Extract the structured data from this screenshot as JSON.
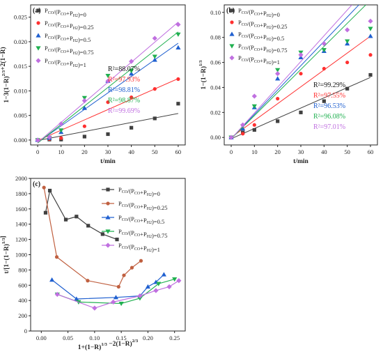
{
  "legend_prefix": "P",
  "legend_labels": [
    "P_CO/(P_CO+P_H2)=0",
    "P_CO/(P_CO+P_H2)=0.25",
    "P_CO/(P_CO+P_H2)=0.5",
    "P_CO/(P_CO+P_H2)=0.75",
    "P_CO/(P_CO+P_H2)=1"
  ],
  "chart_data": [
    {
      "type": "scatter",
      "panel_label": "(a)",
      "xlabel": "t/min",
      "ylabel": "1−3(1−R)^2/3+2(1−R)",
      "xlim": [
        -3,
        63
      ],
      "ylim": [
        -0.001,
        0.0275
      ],
      "xticks": [
        "0",
        "10",
        "20",
        "30",
        "40",
        "50",
        "60"
      ],
      "yticks": [
        "0.000",
        "0.005",
        "0.010",
        "0.015",
        "0.020",
        "0.025"
      ],
      "legend_position": "top-left",
      "r2": [
        "R²=88.07%",
        "R²=97.93%",
        "R²=98.81%",
        "R²=98.87%",
        "R²=99.69%"
      ],
      "series": [
        {
          "name": "P_CO/(P_CO+P_H2)=0",
          "color": "#404040",
          "marker": "square",
          "x": [
            0,
            5,
            10,
            20,
            30,
            40,
            50,
            60
          ],
          "y": [
            0.0,
            0.0001,
            0.0001,
            0.0007,
            0.0012,
            0.0025,
            0.0044,
            0.0074
          ],
          "fit": [
            [
              0,
              -0.0001
            ],
            [
              60,
              0.0054
            ]
          ]
        },
        {
          "name": "P_CO/(P_CO+P_H2)=0.25",
          "color": "#ff3030",
          "marker": "circle",
          "x": [
            0,
            5,
            10,
            20,
            30,
            40,
            50,
            60
          ],
          "y": [
            0.0,
            0.0002,
            0.0004,
            0.0028,
            0.0077,
            0.0087,
            0.0104,
            0.0124
          ],
          "fit": [
            [
              0,
              -0.0001
            ],
            [
              60,
              0.0125
            ]
          ]
        },
        {
          "name": "P_CO/(P_CO+P_H2)=0.5",
          "color": "#2060d0",
          "marker": "triangle",
          "x": [
            0,
            5,
            10,
            20,
            30,
            40,
            50,
            60
          ],
          "y": [
            0.0,
            0.0004,
            0.0016,
            0.0065,
            0.012,
            0.0135,
            0.0163,
            0.0188
          ],
          "fit": [
            [
              0,
              -0.0005
            ],
            [
              60,
              0.0197
            ]
          ]
        },
        {
          "name": "P_CO/(P_CO+P_H2)=0.75",
          "color": "#20b050",
          "marker": "triangle-down",
          "x": [
            0,
            5,
            10,
            20,
            30,
            40,
            50,
            60
          ],
          "y": [
            0.0,
            0.0005,
            0.002,
            0.0086,
            0.0131,
            0.0141,
            0.017,
            0.0215
          ],
          "fit": [
            [
              0,
              -0.0006
            ],
            [
              60,
              0.022
            ]
          ]
        },
        {
          "name": "P_CO/(P_CO+P_H2)=1",
          "color": "#c070e0",
          "marker": "diamond",
          "x": [
            0,
            5,
            10,
            20,
            30,
            40,
            50,
            60
          ],
          "y": [
            0.0,
            0.0006,
            0.0033,
            0.008,
            0.012,
            0.016,
            0.0207,
            0.0235
          ],
          "fit": [
            [
              0,
              -0.0005
            ],
            [
              60,
              0.024
            ]
          ]
        }
      ]
    },
    {
      "type": "scatter",
      "panel_label": "(b)",
      "xlabel": "t/min",
      "ylabel": "1−(1−R)^1/3",
      "xlim": [
        -3,
        63
      ],
      "ylim": [
        -0.006,
        0.106
      ],
      "xticks": [
        "0",
        "10",
        "20",
        "30",
        "40",
        "50",
        "60"
      ],
      "yticks": [
        "0.00",
        "0.02",
        "0.04",
        "0.06",
        "0.08",
        "0.10"
      ],
      "legend_position": "top-left",
      "r2": [
        "R²=99.29%",
        "R²=97.55%",
        "R²=96.53%",
        "R²=96.08%",
        "R²=97.01%"
      ],
      "series": [
        {
          "name": "P_CO/(P_CO+P_H2)=0",
          "color": "#404040",
          "marker": "square",
          "x": [
            0,
            5,
            10,
            20,
            30,
            40,
            50,
            60
          ],
          "y": [
            0.0,
            0.004,
            0.006,
            0.013,
            0.02,
            0.029,
            0.039,
            0.05
          ],
          "fit": [
            [
              0,
              -0.001
            ],
            [
              60,
              0.048
            ]
          ]
        },
        {
          "name": "P_CO/(P_CO+P_H2)=0.25",
          "color": "#ff3030",
          "marker": "circle",
          "x": [
            0,
            5,
            10,
            20,
            30,
            40,
            50,
            60
          ],
          "y": [
            0.0,
            0.003,
            0.01,
            0.031,
            0.051,
            0.055,
            0.06,
            0.066
          ],
          "fit": [
            [
              0,
              0.0
            ],
            [
              60,
              0.081
            ]
          ]
        },
        {
          "name": "P_CO/(P_CO+P_H2)=0.5",
          "color": "#2060d0",
          "marker": "triangle",
          "x": [
            0,
            5,
            10,
            20,
            30,
            40,
            50,
            60
          ],
          "y": [
            0.0,
            0.007,
            0.024,
            0.047,
            0.064,
            0.069,
            0.075,
            0.081
          ],
          "fit": [
            [
              0,
              -0.001
            ],
            [
              55,
              0.106
            ]
          ]
        },
        {
          "name": "P_CO/(P_CO+P_H2)=0.75",
          "color": "#20b050",
          "marker": "triangle-down",
          "x": [
            0,
            5,
            10,
            20,
            30,
            40,
            50,
            60
          ],
          "y": [
            0.0,
            0.009,
            0.025,
            0.054,
            0.068,
            0.07,
            0.077,
            0.087
          ],
          "fit": [
            [
              0,
              -0.001
            ],
            [
              58,
              0.106
            ]
          ]
        },
        {
          "name": "P_CO/(P_CO+P_H2)=1",
          "color": "#c070e0",
          "marker": "diamond",
          "x": [
            0,
            5,
            10,
            20,
            30,
            40,
            50,
            60
          ],
          "y": [
            0.0,
            0.01,
            0.033,
            0.051,
            0.066,
            0.075,
            0.086,
            0.093
          ],
          "fit": [
            [
              0,
              -0.001
            ],
            [
              52,
              0.106
            ]
          ]
        }
      ]
    },
    {
      "type": "line",
      "panel_label": "(c)",
      "xlabel": "1+(1−R)^1/3 −2(1−R)^2/3",
      "ylabel": "t/[1−(1−R)^1/3]",
      "xlim": [
        -0.02,
        0.27
      ],
      "ylim": [
        0,
        2000
      ],
      "xticks": [
        "0.00",
        "0.05",
        "0.10",
        "0.15",
        "0.20",
        "0.25"
      ],
      "yticks": [
        "0",
        "200",
        "400",
        "600",
        "800",
        "1000",
        "1200",
        "1400",
        "1600",
        "1800",
        "2000"
      ],
      "legend_position": "top-right",
      "series": [
        {
          "name": "P_CO/(P_CO+P_H2)=0",
          "color": "#404040",
          "marker": "square",
          "x": [
            0.008,
            0.016,
            0.046,
            0.066,
            0.088,
            0.115,
            0.142
          ],
          "y": [
            1550,
            1840,
            1460,
            1500,
            1380,
            1270,
            1200
          ]
        },
        {
          "name": "P_CO/(P_CO+P_H2)=0.25",
          "color": "#c06040",
          "marker": "circle",
          "x": [
            0.005,
            0.029,
            0.087,
            0.145,
            0.155,
            0.17,
            0.187
          ],
          "y": [
            1880,
            970,
            660,
            580,
            730,
            830,
            920
          ]
        },
        {
          "name": "P_CO/(P_CO+P_H2)=0.5",
          "color": "#2060d0",
          "marker": "triangle",
          "x": [
            0.02,
            0.066,
            0.14,
            0.185,
            0.2,
            0.215,
            0.23
          ],
          "y": [
            670,
            420,
            440,
            460,
            580,
            640,
            740
          ]
        },
        {
          "name": "P_CO/(P_CO+P_H2)=0.75",
          "color": "#20b050",
          "marker": "triangle-down",
          "x": [
            0.03,
            0.07,
            0.15,
            0.185,
            0.22,
            0.25
          ],
          "y": [
            480,
            380,
            360,
            430,
            620,
            680
          ]
        },
        {
          "name": "P_CO/(P_CO+P_H2)=1",
          "color": "#c070e0",
          "marker": "diamond",
          "x": [
            0.03,
            0.1,
            0.135,
            0.185,
            0.215,
            0.24,
            0.258
          ],
          "y": [
            480,
            300,
            380,
            460,
            530,
            580,
            660
          ]
        }
      ]
    }
  ]
}
